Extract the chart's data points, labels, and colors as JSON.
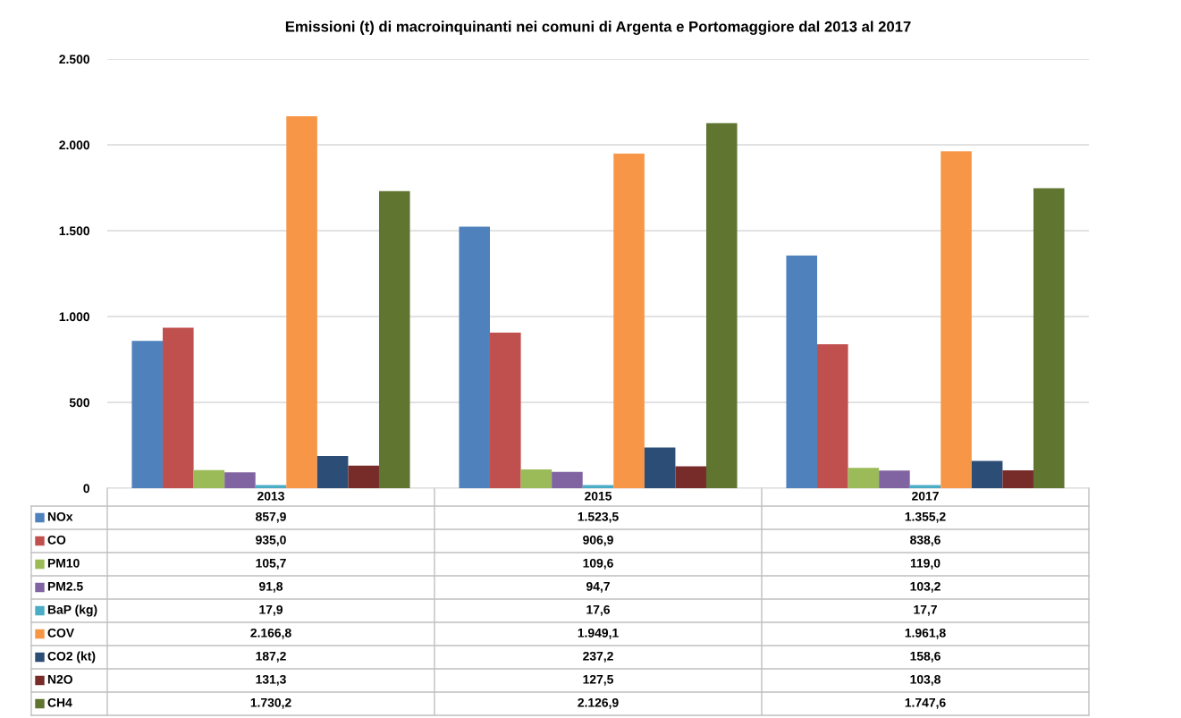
{
  "chart_data": {
    "type": "bar",
    "title": "Emissioni (t) di macroinquinanti nei comuni di Argenta e Portomaggiore dal 2013 al 2017",
    "categories": [
      "2013",
      "2015",
      "2017"
    ],
    "ylim": [
      0,
      2500
    ],
    "yticks": [
      0,
      {
        "value": 500,
        "label": "500"
      },
      {
        "value": 1000,
        "label": "1.000"
      },
      {
        "value": 1500,
        "label": "1.500"
      },
      {
        "value": 2000,
        "label": "2.000"
      },
      {
        "value": 2500,
        "label": "2.500"
      }
    ],
    "grid": "y",
    "legend": "bottom",
    "series": [
      {
        "name": "NOx",
        "color": "#4f81bd",
        "values": [
          857.9,
          1523.5,
          1355.2
        ],
        "value_labels": [
          "857,9",
          "1.523,5",
          "1.355,2"
        ]
      },
      {
        "name": "CO",
        "color": "#c0504d",
        "values": [
          935.0,
          906.9,
          838.6
        ],
        "value_labels": [
          "935,0",
          "906,9",
          "838,6"
        ]
      },
      {
        "name": "PM10",
        "color": "#9bbb59",
        "values": [
          105.7,
          109.6,
          119.0
        ],
        "value_labels": [
          "105,7",
          "109,6",
          "119,0"
        ]
      },
      {
        "name": "PM2.5",
        "color": "#8064a2",
        "values": [
          91.8,
          94.7,
          103.2
        ],
        "value_labels": [
          "91,8",
          "94,7",
          "103,2"
        ]
      },
      {
        "name": "BaP (kg)",
        "color": "#4bacc6",
        "values": [
          17.9,
          17.6,
          17.7
        ],
        "value_labels": [
          "17,9",
          "17,6",
          "17,7"
        ]
      },
      {
        "name": "COV",
        "color": "#f79646",
        "values": [
          2166.8,
          1949.1,
          1961.8
        ],
        "value_labels": [
          "2.166,8",
          "1.949,1",
          "1.961,8"
        ]
      },
      {
        "name": "CO2 (kt)",
        "color": "#2c4d75",
        "values": [
          187.2,
          237.2,
          158.6
        ],
        "value_labels": [
          "187,2",
          "237,2",
          "158,6"
        ]
      },
      {
        "name": "N2O",
        "color": "#772c2a",
        "values": [
          131.3,
          127.5,
          103.8
        ],
        "value_labels": [
          "131,3",
          "127,5",
          "103,8"
        ]
      },
      {
        "name": "CH4",
        "color": "#5f7530",
        "values": [
          1730.2,
          2126.9,
          1747.6
        ],
        "value_labels": [
          "1.730,2",
          "2.126,9",
          "1.747,6"
        ]
      }
    ]
  }
}
